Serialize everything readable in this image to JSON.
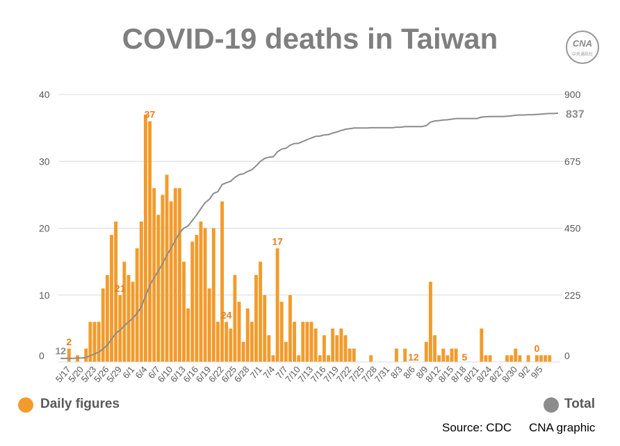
{
  "title": "COVID-19 deaths in Taiwan",
  "logo": {
    "text": "CNA",
    "subtext": "中央通訊社"
  },
  "legend": [
    {
      "label": "Daily figures",
      "color": "#f29b2c",
      "icon": "circle"
    },
    {
      "label": "Total",
      "color": "#8c8c8c",
      "icon": "circle"
    }
  ],
  "footer": {
    "source": "Source: CDC",
    "credit": "CNA graphic"
  },
  "colors": {
    "bar": "#f29b2c",
    "line": "#8c8c8c",
    "grid": "#d9d9d9",
    "axis_text": "#595959",
    "label": "#e87e1b"
  },
  "chart_data": {
    "type": "bar",
    "start_date": "5/15",
    "end_date": "9/5",
    "x_tick_labels": [
      "5/17",
      "5/20",
      "5/23",
      "5/26",
      "5/29",
      "6/1",
      "6/4",
      "6/7",
      "6/10",
      "6/13",
      "6/16",
      "6/19",
      "6/22",
      "6/25",
      "6/28",
      "7/1",
      "7/4",
      "7/7",
      "7/10",
      "7/13",
      "7/16",
      "7/19",
      "7/22",
      "7/25",
      "7/28",
      "7/31",
      "8/3",
      "8/6",
      "8/9",
      "8/12",
      "8/15",
      "8/18",
      "8/21",
      "8/24",
      "8/27",
      "8/30",
      "9/2",
      "9/5"
    ],
    "y_left": {
      "ticks": [
        0,
        10,
        20,
        30,
        40
      ],
      "lim": [
        0,
        40
      ]
    },
    "y_right": {
      "ticks": [
        0,
        225,
        450,
        675,
        900
      ],
      "lim": [
        0,
        900
      ]
    },
    "series": [
      {
        "name": "Daily figures",
        "axis": "left",
        "type": "bar",
        "values": [
          0,
          0,
          2,
          0,
          1,
          0,
          2,
          6,
          6,
          6,
          11,
          13,
          19,
          21,
          10,
          15,
          13,
          12,
          17,
          21,
          37,
          36,
          26,
          22,
          25,
          28,
          24,
          26,
          26,
          15,
          8,
          18,
          19,
          21,
          20,
          11,
          20,
          6,
          24,
          6,
          5,
          13,
          9,
          3,
          8,
          6,
          13,
          15,
          10,
          4,
          1,
          17,
          9,
          3,
          10,
          6,
          1,
          6,
          6,
          6,
          5,
          1,
          4,
          1,
          5,
          4,
          5,
          4,
          2,
          2,
          0,
          0,
          0,
          1,
          0,
          0,
          0,
          0,
          0,
          2,
          0,
          2,
          0,
          0,
          0,
          0,
          3,
          12,
          4,
          1,
          2,
          1,
          2,
          2,
          0,
          0,
          0,
          0,
          0,
          5,
          1,
          1,
          0,
          0,
          0,
          1,
          1,
          2,
          1,
          0,
          1,
          0,
          1,
          1,
          1,
          1,
          0,
          0
        ]
      },
      {
        "name": "Total",
        "axis": "right",
        "type": "line",
        "values": [
          12,
          12,
          12,
          12,
          13,
          13,
          15,
          21,
          27,
          33,
          44,
          57,
          76,
          97,
          107,
          122,
          135,
          147,
          164,
          185,
          222,
          258,
          284,
          306,
          331,
          359,
          383,
          409,
          435,
          450,
          458,
          476,
          495,
          516,
          536,
          547,
          567,
          573,
          597,
          603,
          608,
          621,
          630,
          633,
          641,
          647,
          660,
          675,
          685,
          689,
          690,
          707,
          716,
          719,
          729,
          735,
          736,
          742,
          748,
          754,
          759,
          760,
          764,
          765,
          770,
          774,
          779,
          783,
          785,
          787,
          787,
          787,
          787,
          788,
          788,
          788,
          788,
          788,
          788,
          790,
          790,
          792,
          792,
          792,
          792,
          792,
          795,
          807,
          811,
          812,
          814,
          815,
          817,
          819,
          819,
          819,
          819,
          819,
          819,
          824,
          825,
          826,
          826,
          826,
          826,
          827,
          828,
          830,
          831,
          831,
          832,
          832,
          833,
          834,
          835,
          836,
          836,
          837
        ]
      }
    ],
    "annotations": [
      {
        "date": "5/17",
        "series": "Total",
        "text": "12"
      },
      {
        "date": "5/17",
        "series": "Daily figures",
        "text": "2"
      },
      {
        "date": "5/29",
        "series": "Daily figures",
        "text": "21"
      },
      {
        "date": "6/5",
        "series": "Daily figures",
        "text": "37"
      },
      {
        "date": "6/23",
        "series": "Daily figures",
        "text": "24"
      },
      {
        "date": "7/5",
        "series": "Daily figures",
        "text": "17"
      },
      {
        "date": "8/6",
        "series": "Daily figures",
        "text": "12"
      },
      {
        "date": "8/18",
        "series": "Daily figures",
        "text": "5"
      },
      {
        "date": "9/4",
        "series": "Daily figures",
        "text": "0"
      },
      {
        "date": "9/4",
        "series": "Total",
        "text": "837"
      }
    ]
  }
}
